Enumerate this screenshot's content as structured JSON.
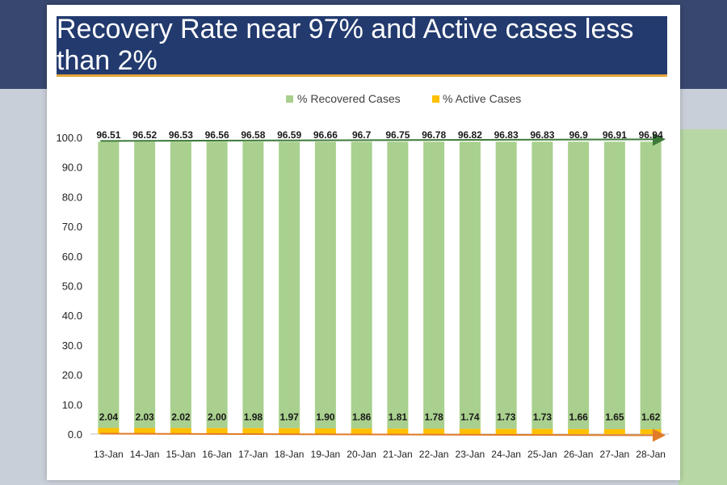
{
  "chart_data": {
    "type": "bar",
    "title": "Recovery Rate near 97% and Active cases less than 2%",
    "categories": [
      "13-Jan",
      "14-Jan",
      "15-Jan",
      "16-Jan",
      "17-Jan",
      "18-Jan",
      "19-Jan",
      "20-Jan",
      "21-Jan",
      "22-Jan",
      "23-Jan",
      "24-Jan",
      "25-Jan",
      "26-Jan",
      "27-Jan",
      "28-Jan"
    ],
    "series": [
      {
        "name": "% Recovered Cases",
        "color": "#a9d08e",
        "values": [
          96.51,
          96.52,
          96.53,
          96.56,
          96.58,
          96.59,
          96.66,
          96.7,
          96.75,
          96.78,
          96.82,
          96.83,
          96.83,
          96.9,
          96.91,
          96.94
        ],
        "labels": [
          "96.51",
          "96.52",
          "96.53",
          "96.56",
          "96.58",
          "96.59",
          "96.66",
          "96.7",
          "96.75",
          "96.78",
          "96.82",
          "96.83",
          "96.83",
          "96.9",
          "96.91",
          "96.94"
        ]
      },
      {
        "name": "% Active Cases",
        "color": "#ffc000",
        "values": [
          2.04,
          2.03,
          2.02,
          2.0,
          1.98,
          1.97,
          1.9,
          1.86,
          1.81,
          1.78,
          1.74,
          1.73,
          1.73,
          1.66,
          1.65,
          1.62
        ],
        "labels": [
          "2.04",
          "2.03",
          "2.02",
          "2.00",
          "1.98",
          "1.97",
          "1.90",
          "1.86",
          "1.81",
          "1.78",
          "1.74",
          "1.73",
          "1.73",
          "1.66",
          "1.65",
          "1.62"
        ]
      }
    ],
    "trend_arrow_colors": {
      "recovered": "#3d7a3a",
      "active": "#e07b28"
    },
    "ylim": [
      0,
      100
    ],
    "yticks": [
      0,
      10,
      20,
      30,
      40,
      50,
      60,
      70,
      80,
      90,
      100
    ],
    "ytick_labels": [
      "0.0",
      "10.0",
      "20.0",
      "30.0",
      "40.0",
      "50.0",
      "60.0",
      "70.0",
      "80.0",
      "90.0",
      "100.0"
    ],
    "legend_position": "top-center",
    "grid": false
  }
}
